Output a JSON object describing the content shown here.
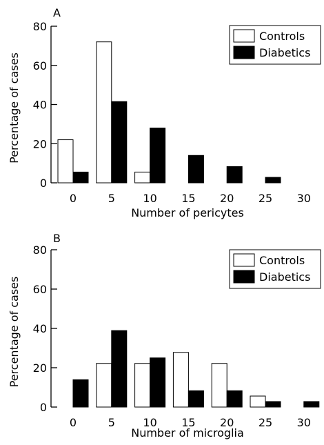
{
  "chart_data": [
    {
      "panel_label": "A",
      "type": "bar",
      "categories": [
        "0",
        "5",
        "10",
        "15",
        "20",
        "25",
        "30"
      ],
      "series": [
        {
          "name": "Controls",
          "values": [
            22,
            72,
            5.5,
            0,
            0,
            0,
            0
          ]
        },
        {
          "name": "Diabetics",
          "values": [
            5.5,
            41.5,
            28,
            14,
            8.3,
            2.8,
            0
          ]
        }
      ],
      "xlabel": "Number of pericytes",
      "ylabel": "Percentage of cases",
      "ylim": [
        0,
        80
      ],
      "yticks": [
        "0",
        "20",
        "40",
        "60",
        "80"
      ],
      "legend": "top-right",
      "grid": false
    },
    {
      "panel_label": "B",
      "type": "bar",
      "categories": [
        "0",
        "5",
        "10",
        "15",
        "20",
        "25",
        "30"
      ],
      "series": [
        {
          "name": "Controls",
          "values": [
            0,
            22.2,
            22.2,
            27.8,
            22.2,
            5.6,
            0
          ]
        },
        {
          "name": "Diabetics",
          "values": [
            13.9,
            38.9,
            25,
            8.3,
            8.3,
            2.8,
            2.8
          ]
        }
      ],
      "xlabel": "Number of microglia",
      "ylabel": "Percentage of cases",
      "ylim": [
        0,
        80
      ],
      "yticks": [
        "0",
        "20",
        "40",
        "60",
        "80"
      ],
      "legend": "top-right",
      "grid": false
    }
  ],
  "colors": {
    "controls": "#ffffff",
    "diabetics": "#000000",
    "axis": "#000000"
  }
}
